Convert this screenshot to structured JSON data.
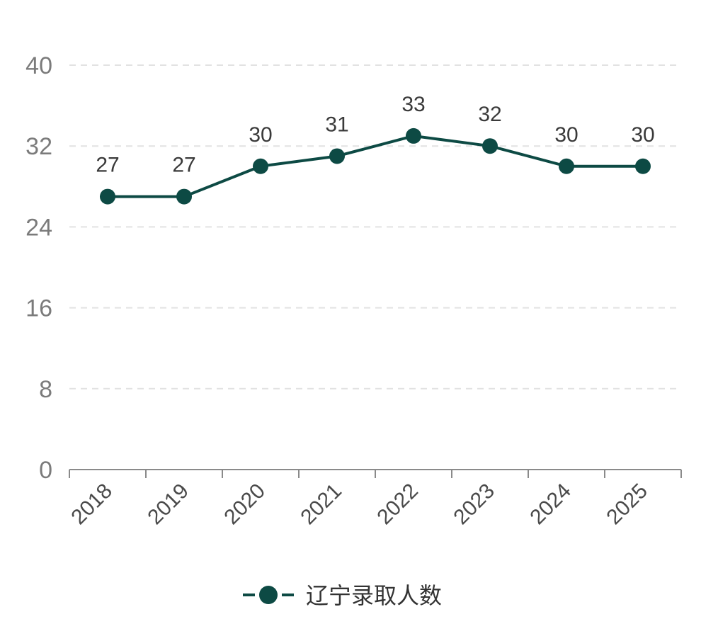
{
  "chart_data": {
    "type": "line",
    "categories": [
      "2018",
      "2019",
      "2020",
      "2021",
      "2022",
      "2023",
      "2024",
      "2025"
    ],
    "series": [
      {
        "name": "辽宁录取人数",
        "values": [
          27,
          27,
          30,
          31,
          33,
          32,
          30,
          30
        ]
      }
    ],
    "yticks": [
      "0",
      "8",
      "16",
      "24",
      "32",
      "40"
    ],
    "ylim": [
      0,
      40
    ],
    "grid": "horizontal dashed",
    "legend_position": "bottom-center",
    "data_labels": true,
    "colors": {
      "series": "#0d4a44",
      "grid": "#e2e2e2",
      "axis": "#8a8a8a"
    }
  }
}
